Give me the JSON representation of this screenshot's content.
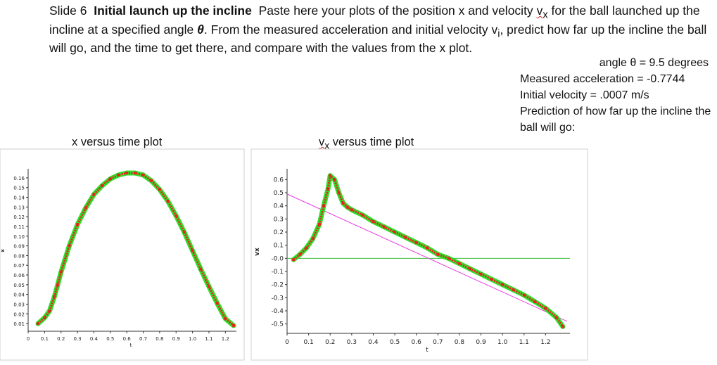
{
  "slide": {
    "slide_label": "Slide 6",
    "heading": "Initial launch up the incline",
    "instructions_part1": "Paste here your plots of the position x and velocity",
    "instructions_vx_v": "v",
    "instructions_vx_sub": "x",
    "instructions_part2": "for the ball launched up the incline at a specified angle",
    "theta": "θ",
    "instructions_part3": ".  From the measured acceleration and initial velocity v",
    "instructions_vi_sub": "i",
    "instructions_part4": ", predict how far up the incline the ball will go, and the time to get there, and compare with the values from the x plot."
  },
  "info": {
    "angle": "angle θ = 9.5 degrees",
    "acceleration": "Measured acceleration = -0.7744",
    "initial_velocity": "Initial velocity = .0007 m/s",
    "prediction": "Prediction of how far up the incline the ball will go:"
  },
  "titles": {
    "x_plot": "x versus time plot",
    "v_plot_v": "v",
    "v_plot_sub": "x",
    "v_plot_rest": " versus time plot"
  },
  "chart_data": [
    {
      "type": "line",
      "title": "x versus time plot",
      "xlabel": "t",
      "ylabel": "x",
      "xlim": [
        0,
        1.25
      ],
      "ylim": [
        0.005,
        0.165
      ],
      "x_ticks": [
        "0",
        "0.1",
        "0.2",
        "0.3",
        "0.4",
        "0.5",
        "0.6",
        "0.7",
        "0.8",
        "0.9",
        "1.0",
        "1.1",
        "1.2"
      ],
      "y_ticks": [
        "0.16",
        "0.15",
        "0.14",
        "0.13",
        "0.12",
        "0.11",
        "0.10",
        "0.09",
        "0.08",
        "0.07",
        "0.06",
        "0.05",
        "0.04",
        "0.03",
        "0.02",
        "0.01"
      ],
      "colors": {
        "markers": "#e8231f",
        "trace": "#2ee02b",
        "axes": "#333333",
        "plot_border": "#cfcfcf"
      },
      "series": [
        {
          "x": [
            0.06,
            0.1,
            0.13,
            0.16,
            0.18,
            0.2,
            0.25,
            0.3,
            0.35,
            0.4,
            0.45,
            0.5,
            0.55,
            0.6,
            0.65,
            0.7,
            0.75,
            0.8,
            0.85,
            0.9,
            0.95,
            1.0,
            1.05,
            1.1,
            1.15,
            1.2,
            1.25
          ],
          "y": [
            0.01,
            0.016,
            0.023,
            0.038,
            0.05,
            0.063,
            0.09,
            0.112,
            0.129,
            0.143,
            0.152,
            0.159,
            0.163,
            0.165,
            0.165,
            0.163,
            0.157,
            0.148,
            0.136,
            0.121,
            0.104,
            0.085,
            0.066,
            0.048,
            0.031,
            0.015,
            0.008
          ]
        }
      ]
    },
    {
      "type": "line",
      "title": "vx versus time plot",
      "xlabel": "t",
      "ylabel": "vx",
      "xlim": [
        0,
        1.3
      ],
      "ylim": [
        -0.55,
        0.65
      ],
      "x_ticks": [
        "0",
        "0.1",
        "0.2",
        "0.3",
        "0.4",
        "0.5",
        "0.6",
        "0.7",
        "0.8",
        "0.9",
        "1.0",
        "1.1",
        "1.2"
      ],
      "y_ticks": [
        "0.6",
        "0.5",
        "0.4",
        "0.3",
        "0.2",
        "0.1",
        "-0.0",
        "-0.1",
        "-0.2",
        "-0.3",
        "-0.4",
        "-0.5"
      ],
      "colors": {
        "markers": "#e8231f",
        "trace": "#2ee02b",
        "fit_line": "#e83de0",
        "zero_line": "#3cbf3c",
        "axes": "#333333"
      },
      "series": [
        {
          "x": [
            0.03,
            0.06,
            0.09,
            0.12,
            0.15,
            0.17,
            0.19,
            0.2,
            0.22,
            0.24,
            0.26,
            0.28,
            0.3,
            0.35,
            0.4,
            0.45,
            0.5,
            0.55,
            0.6,
            0.65,
            0.7,
            0.75,
            0.8,
            0.85,
            0.9,
            0.95,
            1.0,
            1.05,
            1.1,
            1.15,
            1.2,
            1.25,
            1.28
          ],
          "y": [
            -0.01,
            0.03,
            0.08,
            0.15,
            0.26,
            0.4,
            0.53,
            0.63,
            0.6,
            0.5,
            0.42,
            0.39,
            0.37,
            0.33,
            0.28,
            0.24,
            0.2,
            0.16,
            0.12,
            0.08,
            0.03,
            0.0,
            -0.04,
            -0.08,
            -0.12,
            -0.16,
            -0.2,
            -0.24,
            -0.28,
            -0.33,
            -0.38,
            -0.45,
            -0.52
          ]
        }
      ],
      "fit_line": {
        "x": [
          0.0,
          1.3
        ],
        "y": [
          0.49,
          -0.48
        ]
      }
    }
  ]
}
